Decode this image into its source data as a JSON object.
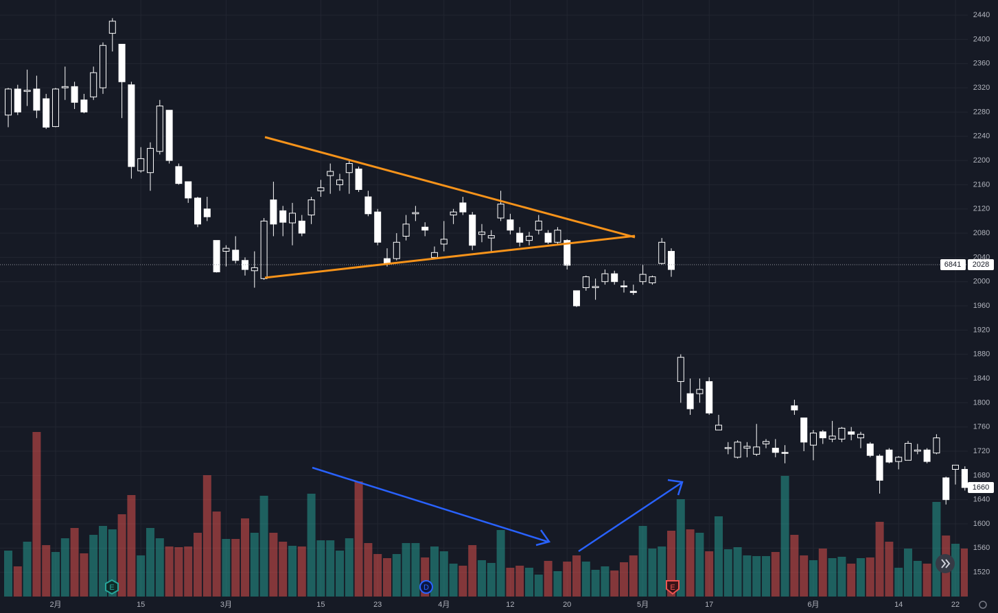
{
  "chart_data": {
    "type": "candlestick",
    "categories": [
      null,
      null,
      null,
      null,
      null,
      "2月",
      null,
      null,
      null,
      null,
      null,
      null,
      null,
      null,
      "15",
      null,
      null,
      null,
      null,
      null,
      null,
      null,
      null,
      "3月",
      null,
      null,
      null,
      null,
      null,
      null,
      null,
      null,
      null,
      "15",
      null,
      null,
      null,
      null,
      null,
      "23",
      null,
      null,
      null,
      null,
      null,
      null,
      "4月",
      null,
      null,
      null,
      null,
      null,
      null,
      "12",
      null,
      null,
      null,
      null,
      null,
      "20",
      null,
      null,
      null,
      null,
      null,
      null,
      null,
      "5月",
      null,
      null,
      null,
      null,
      null,
      null,
      "17",
      null,
      null,
      null,
      null,
      null,
      null,
      null,
      null,
      null,
      null,
      "6月",
      null,
      null,
      null,
      null,
      null,
      null,
      null,
      null,
      "14",
      null,
      null,
      null,
      null,
      null,
      "22",
      null
    ],
    "open": [
      2275,
      2318,
      2314,
      2318,
      2302,
      2256,
      2320,
      2322,
      2300,
      2305,
      2320,
      2410,
      2392,
      2325,
      2183,
      2180,
      2215,
      2283,
      2190,
      2165,
      2138,
      2120,
      2068,
      2050,
      2052,
      2035,
      2018,
      2005,
      2135,
      2117,
      2097,
      2100,
      2110,
      2150,
      2175,
      2160,
      2180,
      2186,
      2140,
      2115,
      2038,
      2038,
      2075,
      2112,
      2090,
      2040,
      2062,
      2110,
      2130,
      2110,
      2078,
      2072,
      2105,
      2102,
      2080,
      2068,
      2085,
      2080,
      2065,
      2068,
      1985,
      1990,
      1990,
      2000,
      2013,
      1993,
      1984,
      2000,
      1998,
      2030,
      2050,
      1835,
      1815,
      1815,
      1835,
      1755,
      1725,
      1710,
      1725,
      1715,
      1732,
      1725,
      1718,
      1795,
      1775,
      1730,
      1752,
      1740,
      1740,
      1752,
      1742,
      1732,
      1712,
      1722,
      1703,
      1705,
      1720,
      1722,
      1717,
      1676,
      1690,
      1690
    ],
    "high": [
      2320,
      2325,
      2350,
      2340,
      2310,
      2320,
      2355,
      2330,
      2310,
      2355,
      2395,
      2435,
      2392,
      2330,
      2222,
      2230,
      2300,
      2283,
      2195,
      2165,
      2140,
      2140,
      2068,
      2060,
      2075,
      2040,
      2050,
      2105,
      2165,
      2125,
      2130,
      2110,
      2140,
      2168,
      2195,
      2178,
      2200,
      2190,
      2150,
      2120,
      2055,
      2080,
      2110,
      2125,
      2098,
      2058,
      2100,
      2120,
      2140,
      2115,
      2095,
      2085,
      2150,
      2112,
      2090,
      2082,
      2110,
      2085,
      2090,
      2070,
      1985,
      2010,
      2005,
      2020,
      2018,
      2002,
      1995,
      2028,
      2010,
      2072,
      2055,
      1880,
      1840,
      1840,
      1842,
      1780,
      1735,
      1738,
      1735,
      1765,
      1740,
      1740,
      1730,
      1805,
      1775,
      1755,
      1755,
      1770,
      1760,
      1760,
      1752,
      1735,
      1715,
      1725,
      1712,
      1737,
      1732,
      1725,
      1748,
      1678,
      1697,
      1695
    ],
    "low": [
      2255,
      2275,
      2290,
      2270,
      2252,
      2255,
      2300,
      2285,
      2278,
      2300,
      2310,
      2380,
      2270,
      2170,
      2180,
      2150,
      2210,
      2195,
      2160,
      2130,
      2090,
      2100,
      2015,
      2025,
      2030,
      2010,
      1990,
      2003,
      2075,
      2075,
      2060,
      2075,
      2095,
      2140,
      2145,
      2150,
      2145,
      2148,
      2108,
      2060,
      2025,
      2035,
      2068,
      2100,
      2075,
      2038,
      2050,
      2095,
      2110,
      2052,
      2065,
      2050,
      2100,
      2078,
      2058,
      2060,
      2078,
      2062,
      2060,
      2020,
      1958,
      1985,
      1970,
      1995,
      1995,
      1982,
      1978,
      1995,
      1995,
      2028,
      2008,
      1800,
      1780,
      1800,
      1780,
      1755,
      1715,
      1708,
      1710,
      1712,
      1725,
      1710,
      1700,
      1780,
      1720,
      1705,
      1732,
      1735,
      1735,
      1738,
      1725,
      1710,
      1650,
      1700,
      1690,
      1705,
      1715,
      1700,
      1715,
      1632,
      1665,
      1655
    ],
    "close": [
      2318,
      2280,
      2316,
      2283,
      2255,
      2318,
      2322,
      2296,
      2280,
      2345,
      2390,
      2430,
      2330,
      2190,
      2203,
      2220,
      2290,
      2200,
      2162,
      2138,
      2095,
      2107,
      2016,
      2055,
      2035,
      2020,
      2023,
      2100,
      2095,
      2098,
      2113,
      2080,
      2135,
      2155,
      2182,
      2168,
      2195,
      2152,
      2112,
      2065,
      2030,
      2065,
      2095,
      2114,
      2085,
      2048,
      2070,
      2115,
      2115,
      2060,
      2082,
      2076,
      2128,
      2085,
      2065,
      2075,
      2100,
      2065,
      2085,
      2027,
      1960,
      2008,
      1992,
      2013,
      2000,
      1992,
      1982,
      2012,
      2008,
      2065,
      2020,
      1875,
      1790,
      1822,
      1783,
      1763,
      1726,
      1735,
      1728,
      1727,
      1736,
      1718,
      1718,
      1788,
      1735,
      1750,
      1742,
      1745,
      1758,
      1748,
      1748,
      1713,
      1672,
      1702,
      1710,
      1733,
      1722,
      1703,
      1742,
      1640,
      1697,
      1660
    ],
    "volume": [
      67,
      44,
      80,
      240,
      75,
      65,
      85,
      100,
      63,
      90,
      103,
      98,
      120,
      148,
      60,
      100,
      85,
      73,
      72,
      73,
      93,
      177,
      124,
      84,
      84,
      114,
      93,
      147,
      93,
      80,
      74,
      73,
      150,
      82,
      82,
      67,
      85,
      168,
      78,
      62,
      56,
      62,
      78,
      78,
      57,
      73,
      66,
      48,
      45,
      75,
      53,
      49,
      97,
      42,
      45,
      42,
      32,
      52,
      37,
      51,
      60,
      51,
      39,
      44,
      38,
      50,
      60,
      103,
      70,
      73,
      96,
      142,
      98,
      93,
      66,
      117,
      69,
      72,
      60,
      59,
      59,
      65,
      176,
      90,
      60,
      53,
      70,
      56,
      58,
      48,
      56,
      57,
      109,
      80,
      42,
      70,
      52,
      48,
      138,
      89,
      77,
      70
    ],
    "up_color": "#26a69a",
    "down_color": "#ef5350",
    "ylim": [
      1480,
      2465
    ],
    "yticks": [
      1520,
      1560,
      1600,
      1640,
      1680,
      1720,
      1760,
      1800,
      1840,
      1880,
      1920,
      1960,
      2000,
      2040,
      2080,
      2120,
      2160,
      2200,
      2240,
      2280,
      2320,
      2360,
      2400,
      2440
    ],
    "price_line": {
      "value": 2028,
      "label": "2028"
    },
    "countdown": "6841",
    "last_price": {
      "value": 1660,
      "label": "1660"
    },
    "events": [
      "E",
      "D",
      "E"
    ],
    "grid": true
  }
}
